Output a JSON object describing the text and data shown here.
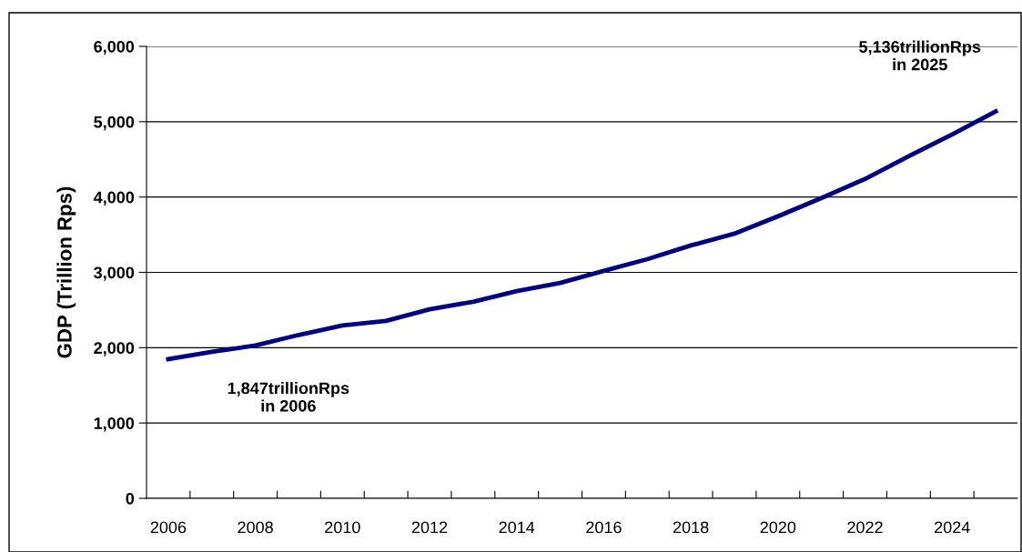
{
  "chart_data": {
    "type": "line",
    "ylabel": "GDP (Trillion Rps)",
    "categories": [
      "2006",
      null,
      "2008",
      null,
      "2010",
      null,
      "2012",
      null,
      "2014",
      null,
      "2016",
      null,
      "2018",
      null,
      "2020",
      null,
      "2022",
      null,
      "2024",
      null
    ],
    "series": [
      {
        "color": "#000080",
        "values": [
          1847,
          1944,
          2029,
          2170,
          2295,
          2355,
          2510,
          2610,
          2750,
          2860,
          3020,
          3175,
          3357,
          3514,
          3744,
          3986,
          4240,
          4541,
          4830,
          5136
        ]
      }
    ],
    "ylim": [
      0,
      6000
    ],
    "yticks": [
      {
        "value": 0,
        "label": "0"
      },
      {
        "value": 1000,
        "label": "1,000"
      },
      {
        "value": 2000,
        "label": "2,000"
      },
      {
        "value": 3000,
        "label": "3,000"
      },
      {
        "value": 4000,
        "label": "4,000"
      },
      {
        "value": 5000,
        "label": "5,000"
      },
      {
        "value": 6000,
        "label": "6,000"
      }
    ],
    "grid": "y",
    "legend": false,
    "marker": "none",
    "line_style": "solid",
    "annotations": [
      "1,847trillionRps\nin 2006",
      "5,136trillionRps\nin 2025"
    ]
  }
}
